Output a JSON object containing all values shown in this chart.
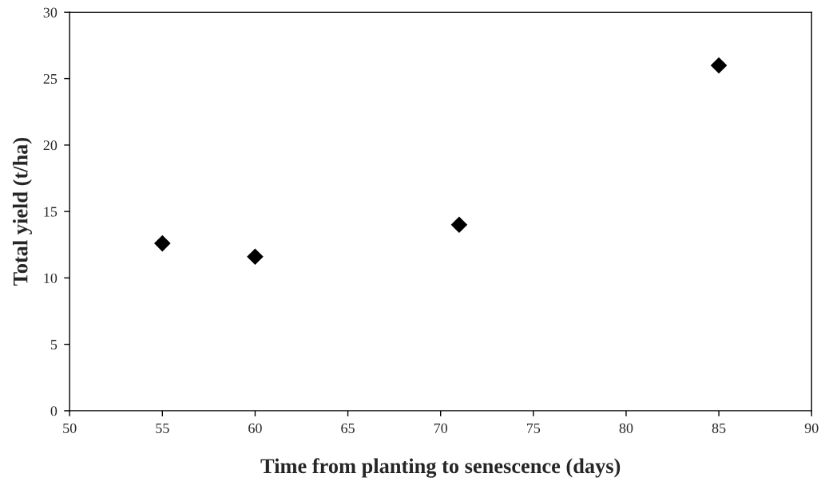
{
  "chart_data": {
    "type": "scatter",
    "xlabel": "Time from planting to senescence (days)",
    "ylabel": "Total yield (t/ha)",
    "x": [
      55,
      60,
      71,
      85
    ],
    "series": [
      {
        "color": "#000000",
        "values": [
          12.6,
          11.6,
          14.0,
          26.0
        ]
      }
    ],
    "xlim": [
      50,
      90
    ],
    "xticks": [
      50,
      55,
      60,
      65,
      70,
      75,
      80,
      85,
      90
    ],
    "ylim": [
      0,
      30
    ],
    "yticks": [
      0,
      5,
      10,
      15,
      20,
      25,
      30
    ],
    "marker": "diamond",
    "grid": false,
    "legend": false
  }
}
